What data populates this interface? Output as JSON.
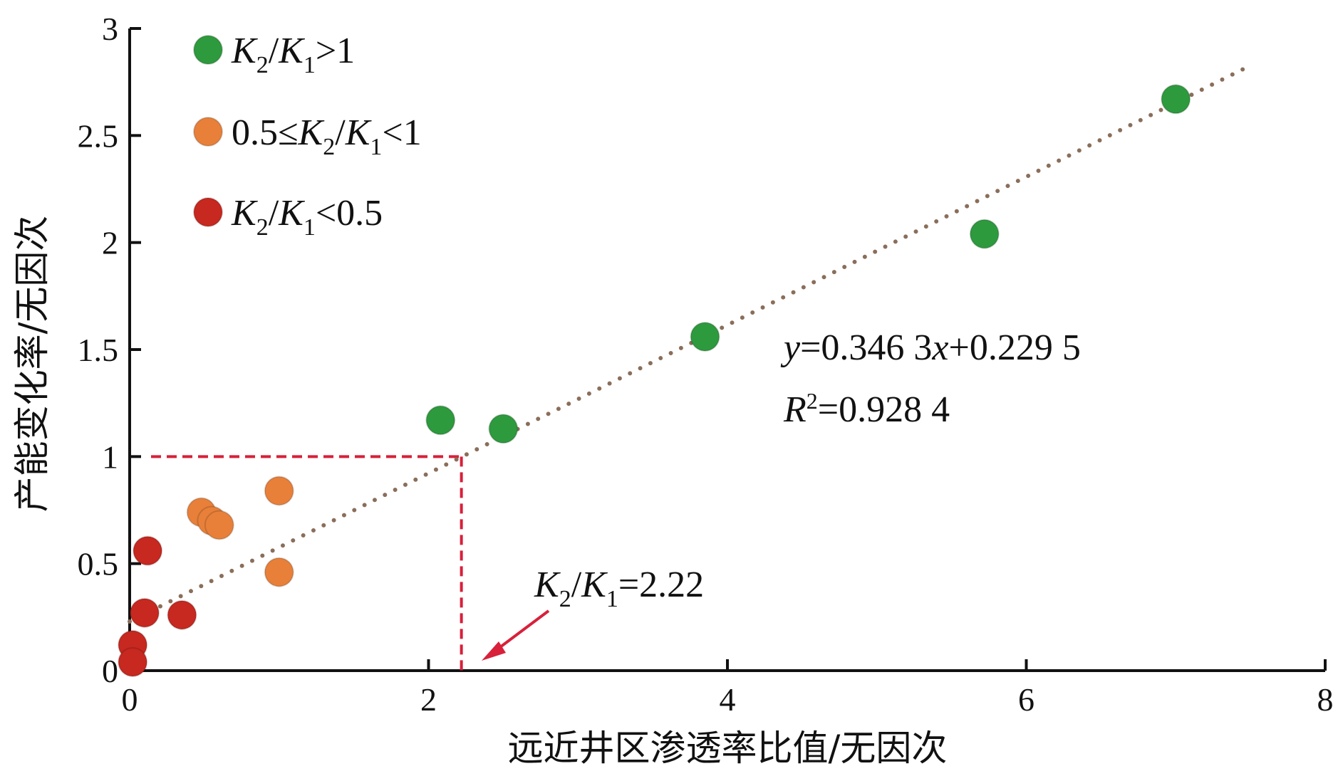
{
  "chart_data": {
    "type": "scatter",
    "xlabel": "远近井区渗透率比值/无因次",
    "ylabel": "产能变化率/无因次",
    "xlim": [
      0,
      8
    ],
    "ylim": [
      0,
      3
    ],
    "x_ticks": [
      "0",
      "2",
      "4",
      "6",
      "8"
    ],
    "y_ticks": [
      "0",
      "0.5",
      "1",
      "1.5",
      "2",
      "2.5",
      "3"
    ],
    "grid": false,
    "legend_position": "top-left",
    "series": [
      {
        "name": "K2/K1>1",
        "color": "#2e9a3e",
        "points": [
          [
            2.08,
            1.17
          ],
          [
            2.5,
            1.13
          ],
          [
            3.85,
            1.56
          ],
          [
            5.72,
            2.04
          ],
          [
            7.0,
            2.67
          ]
        ]
      },
      {
        "name": "0.5≤K2/K1<1",
        "color": "#e8803a",
        "points": [
          [
            0.48,
            0.74
          ],
          [
            0.55,
            0.7
          ],
          [
            0.6,
            0.68
          ],
          [
            1.0,
            0.84
          ],
          [
            1.0,
            0.46
          ]
        ]
      },
      {
        "name": "K2/K1<0.5",
        "color": "#c7281f",
        "points": [
          [
            0.12,
            0.56
          ],
          [
            0.1,
            0.27
          ],
          [
            0.35,
            0.26
          ],
          [
            0.02,
            0.12
          ],
          [
            0.02,
            0.04
          ]
        ]
      }
    ],
    "trendline": {
      "slope": 0.3463,
      "intercept": 0.2295,
      "x_range": [
        0,
        7.5
      ],
      "color": "#8a6e5a",
      "style": "dotted",
      "equation_text": "=0.346 3",
      "equation_parts": {
        "y": "y",
        "eq": "=0.346 3",
        "x": "x",
        "rest": "+0.229 5"
      },
      "r2_parts": {
        "R": "R",
        "sup": "2",
        "rest": "=0.928 4"
      }
    },
    "reference_lines": {
      "x": 2.22,
      "y": 1,
      "color": "#d8203a",
      "style": "dashed"
    },
    "annotation": {
      "parts": {
        "k2": "K",
        "sub2": "2",
        "slash": "/",
        "k1": "K",
        "sub1": "1",
        "value": "=2.22"
      },
      "color": "#d8203a"
    },
    "legend": [
      {
        "k": "K",
        "s2": "2",
        "slash": "/",
        "k1": "K",
        "s1": "1",
        "prefix": "",
        "suffix": ">1"
      },
      {
        "k": "K",
        "s2": "2",
        "slash": "/",
        "k1": "K",
        "s1": "1",
        "prefix": "0.5≤",
        "suffix": "<1"
      },
      {
        "k": "K",
        "s2": "2",
        "slash": "/",
        "k1": "K",
        "s1": "1",
        "prefix": "",
        "suffix": "<0.5"
      }
    ]
  }
}
